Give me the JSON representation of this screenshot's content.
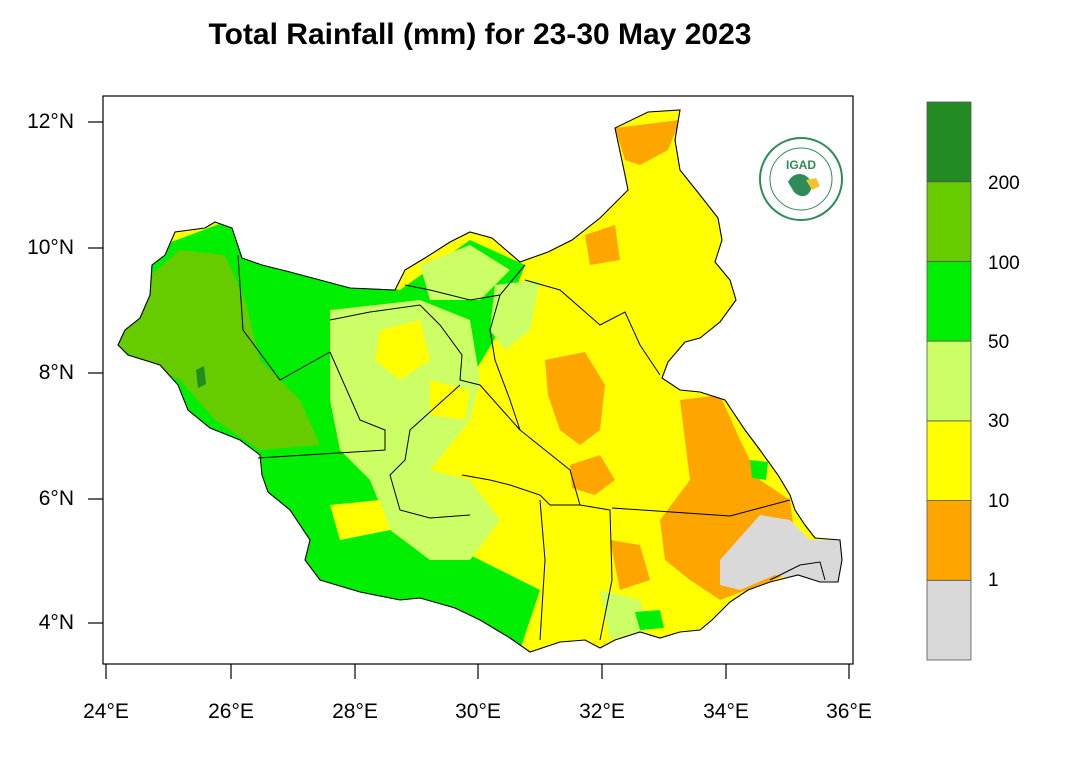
{
  "title": "Total Rainfall (mm) for 23-30 May 2023",
  "latitude_ticks": [
    "12°N",
    "10°N",
    "8°N",
    "6°N",
    "4°N"
  ],
  "longitude_ticks": [
    "24°E",
    "26°E",
    "28°E",
    "30°E",
    "32°E",
    "34°E",
    "36°E"
  ],
  "legend": {
    "bins": [
      {
        "range": "<1",
        "color": "#d9d9d9"
      },
      {
        "range": "1-10",
        "color": "#ffa500"
      },
      {
        "range": "10-30",
        "color": "#ffff00"
      },
      {
        "range": "30-50",
        "color": "#ccff66"
      },
      {
        "range": "50-100",
        "color": "#00ee00"
      },
      {
        "range": "100-200",
        "color": "#66cc00"
      },
      {
        "range": ">200",
        "color": "#228b22"
      }
    ],
    "break_labels": [
      "1",
      "10",
      "30",
      "50",
      "100",
      "200"
    ]
  },
  "logo": {
    "text": "IGAD",
    "icon": "igad-logo-icon"
  }
}
